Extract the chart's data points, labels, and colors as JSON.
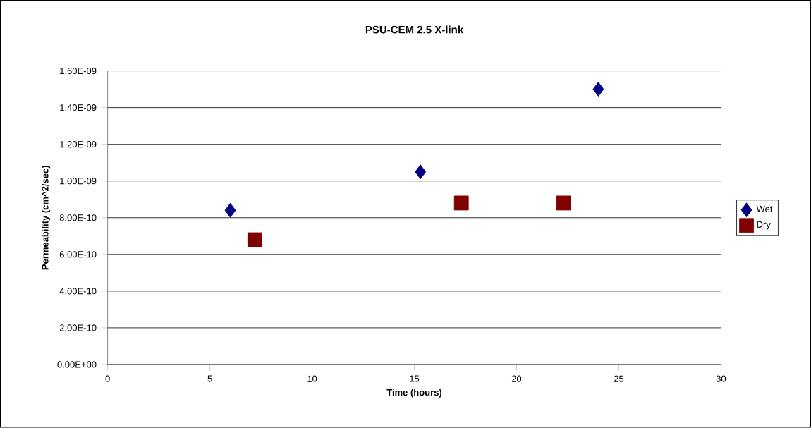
{
  "chart_data": {
    "type": "scatter",
    "title": "PSU-CEM 2.5 X-link",
    "xlabel": "Time (hours)",
    "ylabel": "Permeability (cm^2/sec)",
    "series": [
      {
        "name": "Wet",
        "color": "#000080",
        "marker": "diamond",
        "x": [
          6,
          15.3,
          24
        ],
        "values": [
          8.4e-10,
          1.05e-09,
          1.5e-09
        ]
      },
      {
        "name": "Dry",
        "color": "#800000",
        "marker": "square",
        "x": [
          7.2,
          17.3,
          22.3
        ],
        "values": [
          6.8e-10,
          8.8e-10,
          8.8e-10
        ]
      }
    ],
    "xlim": [
      0,
      30
    ],
    "xticks": [
      0,
      5,
      10,
      15,
      20,
      25,
      30
    ],
    "ylim": [
      0,
      1.6e-09
    ],
    "yticks": [
      {
        "value": 0,
        "label": "0.00E+00"
      },
      {
        "value": 2e-10,
        "label": "2.00E-10"
      },
      {
        "value": 4e-10,
        "label": "4.00E-10"
      },
      {
        "value": 6e-10,
        "label": "6.00E-10"
      },
      {
        "value": 8e-10,
        "label": "8.00E-10"
      },
      {
        "value": 1e-09,
        "label": "1.00E-09"
      },
      {
        "value": 1.2e-09,
        "label": "1.20E-09"
      },
      {
        "value": 1.4e-09,
        "label": "1.40E-09"
      },
      {
        "value": 1.6e-09,
        "label": "1.60E-09"
      }
    ],
    "grid": "y",
    "legend": "right"
  }
}
